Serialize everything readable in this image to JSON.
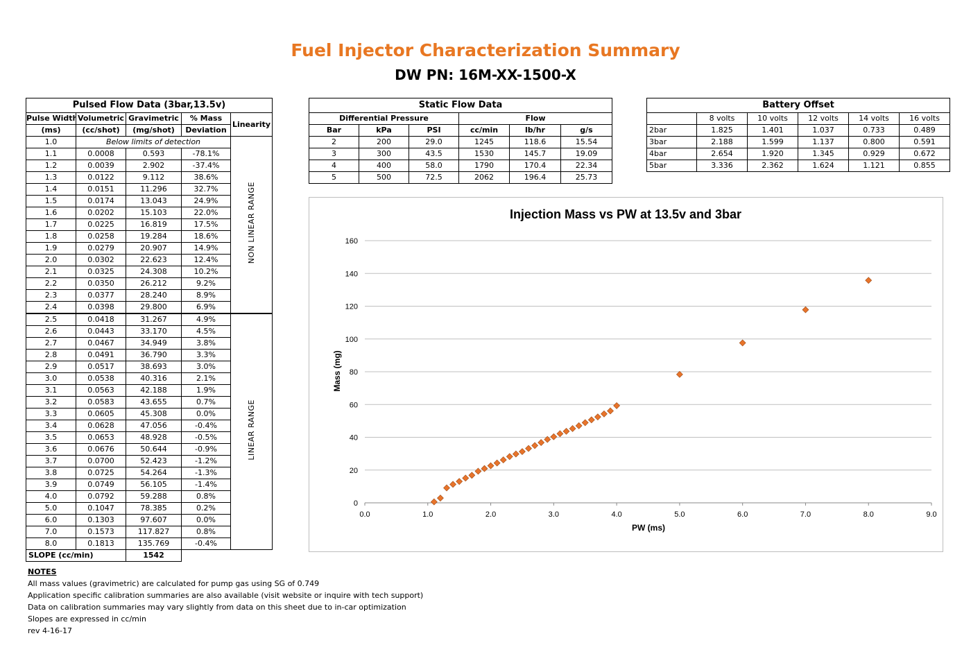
{
  "title": "Fuel Injector Characterization Summary",
  "subtitle": "DW PN: 16M-XX-1500-X",
  "pulsed": {
    "title": "Pulsed Flow Data (3bar,13.5v)",
    "headers": [
      [
        "Pulse Width",
        "(ms)"
      ],
      [
        "Volumetric",
        "(cc/shot)"
      ],
      [
        "Gravimetric",
        "(mg/shot)"
      ],
      [
        "% Mass",
        "Deviation"
      ],
      [
        "Linearity"
      ]
    ],
    "first_row": {
      "pw": "1.0",
      "note": "Below limits of detection"
    },
    "rows": [
      [
        "1.1",
        "0.0008",
        "0.593",
        "-78.1%"
      ],
      [
        "1.2",
        "0.0039",
        "2.902",
        "-37.4%"
      ],
      [
        "1.3",
        "0.0122",
        "9.112",
        "38.6%"
      ],
      [
        "1.4",
        "0.0151",
        "11.296",
        "32.7%"
      ],
      [
        "1.5",
        "0.0174",
        "13.043",
        "24.9%"
      ],
      [
        "1.6",
        "0.0202",
        "15.103",
        "22.0%"
      ],
      [
        "1.7",
        "0.0225",
        "16.819",
        "17.5%"
      ],
      [
        "1.8",
        "0.0258",
        "19.284",
        "18.6%"
      ],
      [
        "1.9",
        "0.0279",
        "20.907",
        "14.9%"
      ],
      [
        "2.0",
        "0.0302",
        "22.623",
        "12.4%"
      ],
      [
        "2.1",
        "0.0325",
        "24.308",
        "10.2%"
      ],
      [
        "2.2",
        "0.0350",
        "26.212",
        "9.2%"
      ],
      [
        "2.3",
        "0.0377",
        "28.240",
        "8.9%"
      ],
      [
        "2.4",
        "0.0398",
        "29.800",
        "6.9%"
      ],
      [
        "2.5",
        "0.0418",
        "31.267",
        "4.9%"
      ],
      [
        "2.6",
        "0.0443",
        "33.170",
        "4.5%"
      ],
      [
        "2.7",
        "0.0467",
        "34.949",
        "3.8%"
      ],
      [
        "2.8",
        "0.0491",
        "36.790",
        "3.3%"
      ],
      [
        "2.9",
        "0.0517",
        "38.693",
        "3.0%"
      ],
      [
        "3.0",
        "0.0538",
        "40.316",
        "2.1%"
      ],
      [
        "3.1",
        "0.0563",
        "42.188",
        "1.9%"
      ],
      [
        "3.2",
        "0.0583",
        "43.655",
        "0.7%"
      ],
      [
        "3.3",
        "0.0605",
        "45.308",
        "0.0%"
      ],
      [
        "3.4",
        "0.0628",
        "47.056",
        "-0.4%"
      ],
      [
        "3.5",
        "0.0653",
        "48.928",
        "-0.5%"
      ],
      [
        "3.6",
        "0.0676",
        "50.644",
        "-0.9%"
      ],
      [
        "3.7",
        "0.0700",
        "52.423",
        "-1.2%"
      ],
      [
        "3.8",
        "0.0725",
        "54.264",
        "-1.3%"
      ],
      [
        "3.9",
        "0.0749",
        "56.105",
        "-1.4%"
      ],
      [
        "4.0",
        "0.0792",
        "59.288",
        "0.8%"
      ],
      [
        "5.0",
        "0.1047",
        "78.385",
        "0.2%"
      ],
      [
        "6.0",
        "0.1303",
        "97.607",
        "0.0%"
      ],
      [
        "7.0",
        "0.1573",
        "117.827",
        "0.8%"
      ],
      [
        "8.0",
        "0.1813",
        "135.769",
        "-0.4%"
      ]
    ],
    "nonlinear_label": "NON LINEAR RANGE",
    "linear_label": "LINEAR RANGE",
    "slope_label": "SLOPE (cc/min)",
    "slope_value": "1542"
  },
  "static": {
    "title": "Static Flow Data",
    "group_headers": [
      "Differential Pressure",
      "Flow"
    ],
    "headers": [
      "Bar",
      "kPa",
      "PSI",
      "cc/min",
      "lb/hr",
      "g/s"
    ],
    "rows": [
      [
        "2",
        "200",
        "29.0",
        "1245",
        "118.6",
        "15.54"
      ],
      [
        "3",
        "300",
        "43.5",
        "1530",
        "145.7",
        "19.09"
      ],
      [
        "4",
        "400",
        "58.0",
        "1790",
        "170.4",
        "22.34"
      ],
      [
        "5",
        "500",
        "72.5",
        "2062",
        "196.4",
        "25.73"
      ]
    ]
  },
  "battery": {
    "title": "Battery Offset",
    "headers": [
      "",
      "8 volts",
      "10 volts",
      "12 volts",
      "14 volts",
      "16 volts"
    ],
    "rows": [
      [
        "2bar",
        "1.825",
        "1.401",
        "1.037",
        "0.733",
        "0.489"
      ],
      [
        "3bar",
        "2.188",
        "1.599",
        "1.137",
        "0.800",
        "0.591"
      ],
      [
        "4bar",
        "2.654",
        "1.920",
        "1.345",
        "0.929",
        "0.672"
      ],
      [
        "5bar",
        "3.336",
        "2.362",
        "1.624",
        "1.121",
        "0.855"
      ]
    ]
  },
  "chart_data": {
    "type": "scatter",
    "title": "Injection Mass vs PW at 13.5v and 3bar",
    "xlabel": "PW (ms)",
    "ylabel": "Mass (mg)",
    "xlim": [
      0,
      9
    ],
    "ylim": [
      0,
      160
    ],
    "xticks": [
      "0.0",
      "1.0",
      "2.0",
      "3.0",
      "4.0",
      "5.0",
      "6.0",
      "7.0",
      "8.0",
      "9.0"
    ],
    "yticks": [
      "0",
      "20",
      "40",
      "60",
      "80",
      "100",
      "120",
      "140",
      "160"
    ],
    "grid": "horizontal",
    "marker_color": "#e8742b",
    "x": [
      1.1,
      1.2,
      1.3,
      1.4,
      1.5,
      1.6,
      1.7,
      1.8,
      1.9,
      2.0,
      2.1,
      2.2,
      2.3,
      2.4,
      2.5,
      2.6,
      2.7,
      2.8,
      2.9,
      3.0,
      3.1,
      3.2,
      3.3,
      3.4,
      3.5,
      3.6,
      3.7,
      3.8,
      3.9,
      4.0,
      5.0,
      6.0,
      7.0,
      8.0
    ],
    "y": [
      0.593,
      2.902,
      9.112,
      11.296,
      13.043,
      15.103,
      16.819,
      19.284,
      20.907,
      22.623,
      24.308,
      26.212,
      28.24,
      29.8,
      31.267,
      33.17,
      34.949,
      36.79,
      38.693,
      40.316,
      42.188,
      43.655,
      45.308,
      47.056,
      48.928,
      50.644,
      52.423,
      54.264,
      56.105,
      59.288,
      78.385,
      97.607,
      117.827,
      135.769
    ]
  },
  "notes": {
    "heading": "NOTES",
    "lines": [
      "All mass values (gravimetric) are calculated for pump gas using SG of 0.749",
      "Application specific calibration summaries are also available (visit website or inquire with tech support)",
      "Data on calibration summaries may vary slightly from data on this sheet due to in-car optimization",
      "Slopes are expressed in cc/min",
      "rev 4-16-17"
    ]
  }
}
